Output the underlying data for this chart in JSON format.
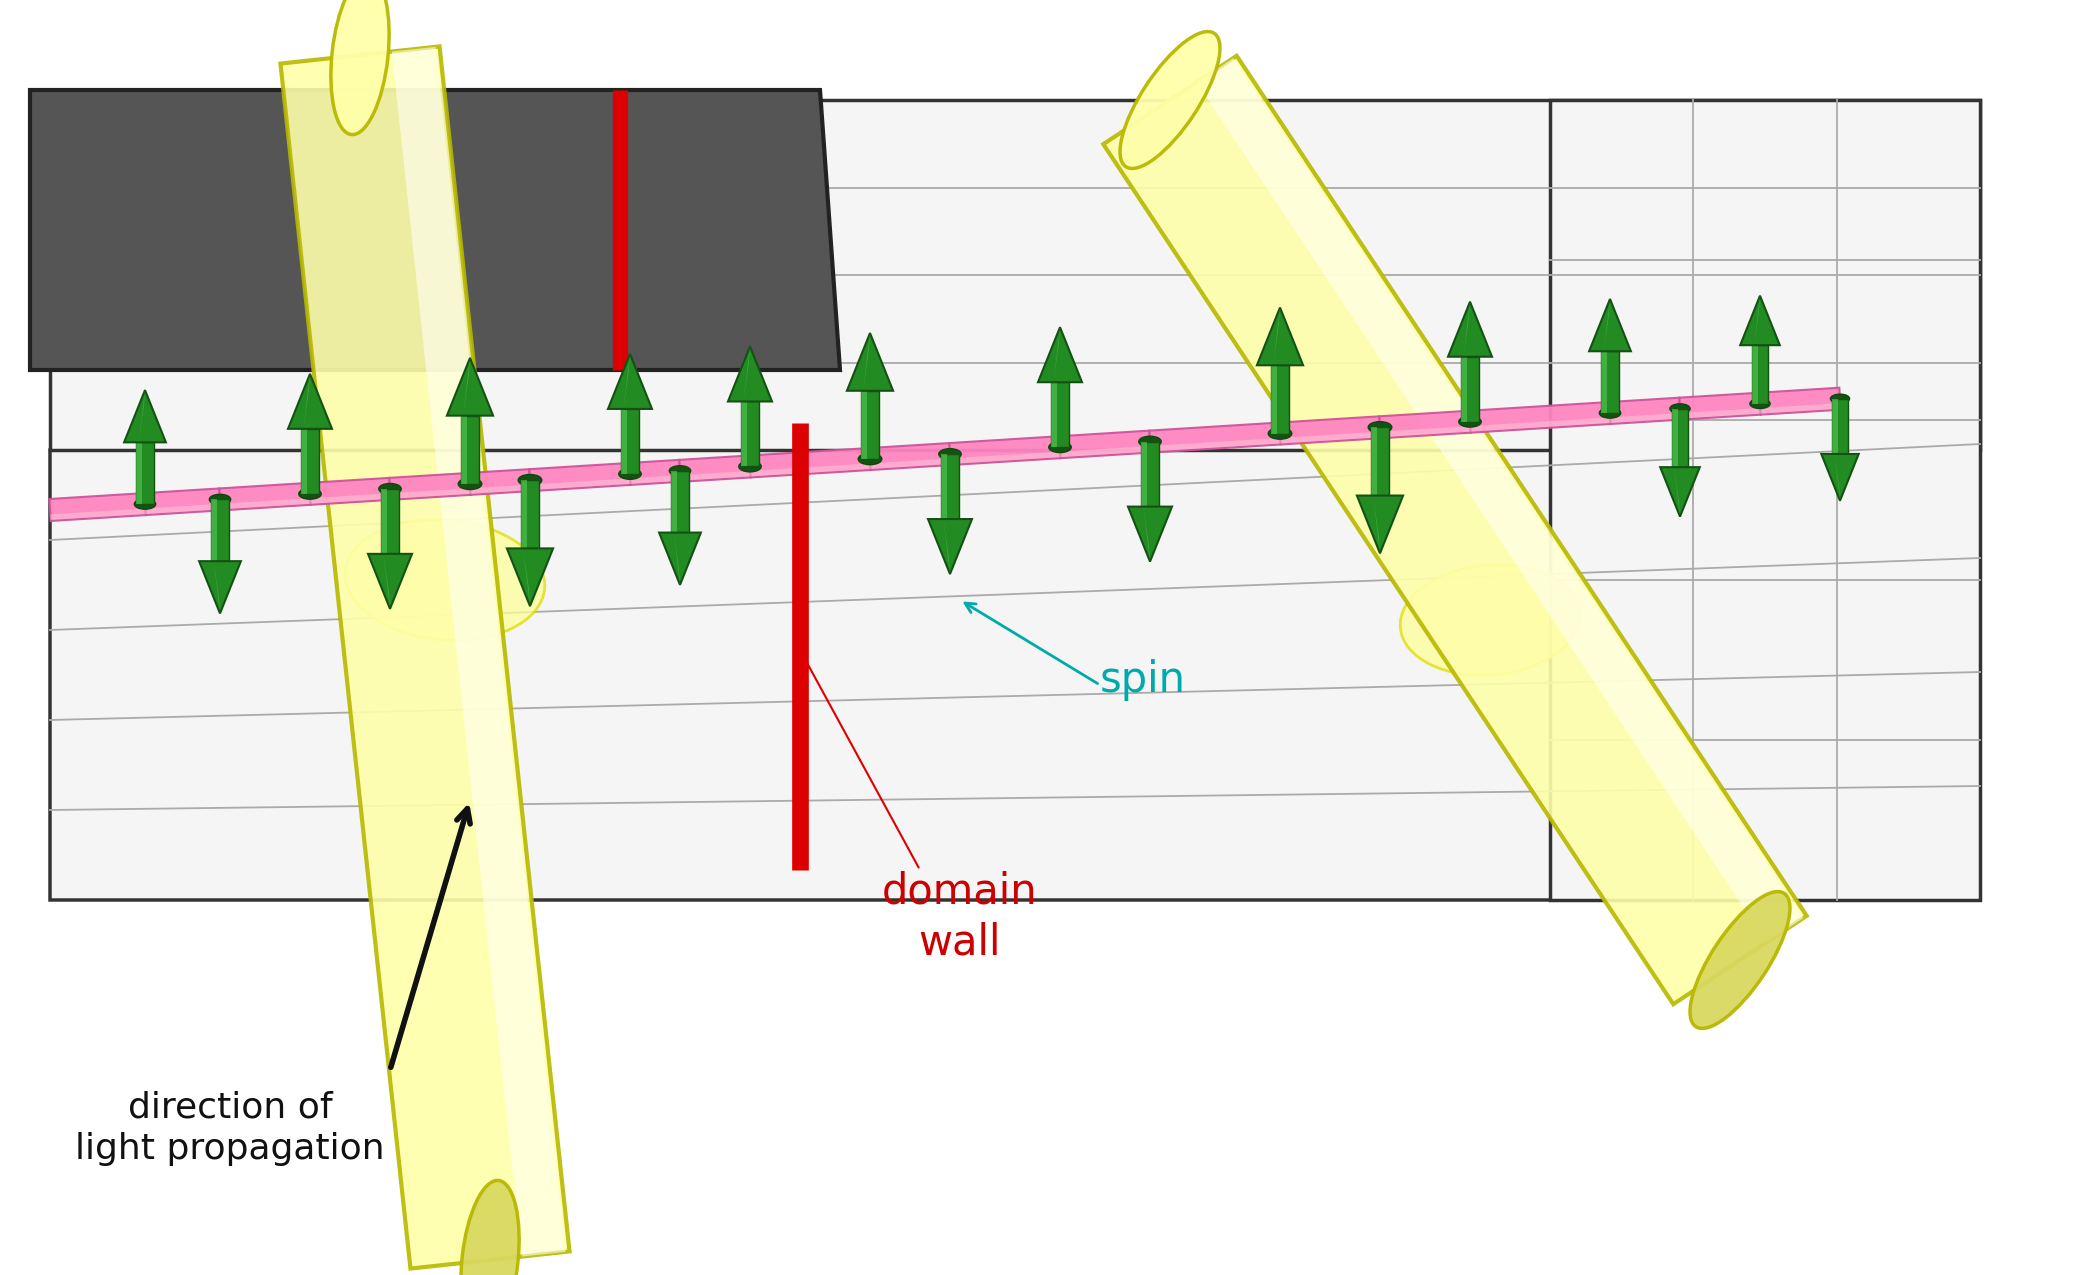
{
  "bg_color": "#ffffff",
  "plane_color": "#f5f5f5",
  "plane_edge": "#333333",
  "dark_color": "#555555",
  "beam_color": "#ffffaa",
  "beam_edge": "#b8b800",
  "beam_highlight": "#fffff0",
  "spin_color": "#228B22",
  "spin_dark": "#145214",
  "spin_light": "#55cc55",
  "connector_color": "#ff85c0",
  "domain_wall_color": "#dd0000",
  "text_dw_color": "#cc0000",
  "text_spin_color": "#00aaaa",
  "text_arrow_color": "#111111",
  "glow_color": "#ffff99",
  "glow_edge": "#dddd00",
  "label_dw": "domain\nwall",
  "label_spin": "spin",
  "label_light": "direction of\nlight propagation"
}
